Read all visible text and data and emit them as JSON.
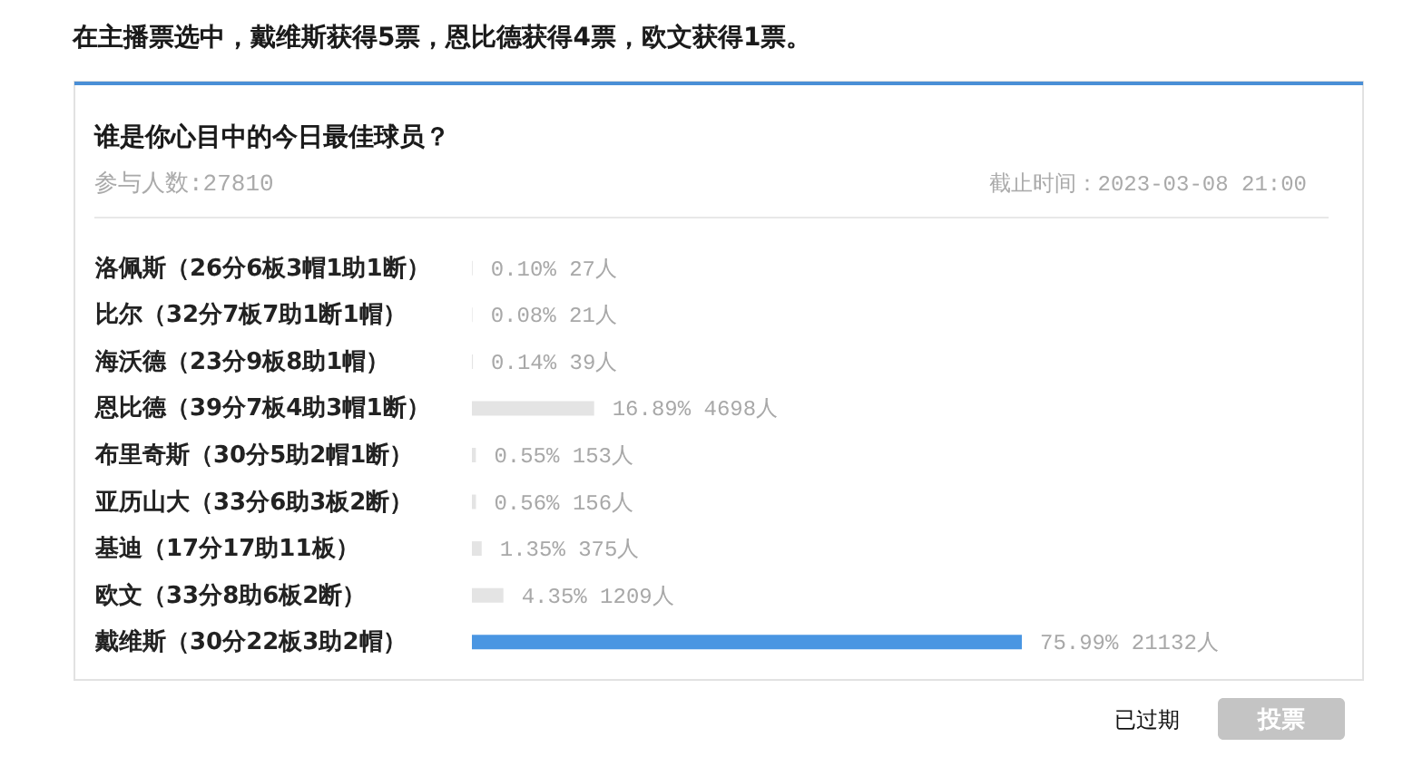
{
  "chart_data": {
    "type": "bar",
    "orientation": "horizontal",
    "title": "在主播票选中，戴维斯获得5票，恩比德获得4票，欧文获得1票。",
    "subtitle": "谁是你心目中的今日最佳球员？",
    "categories": [
      "洛佩斯（26分6板3帽1助1断）",
      "比尔（32分7板7助1断1帽）",
      "海沃德（23分9板8助1帽）",
      "恩比德（39分7板4助3帽1断）",
      "布里奇斯（30分5助2帽1断）",
      "亚历山大（33分6助3板2断）",
      "基迪（17分17助11板）",
      "欧文（33分8助6板2断）",
      "戴维斯（30分22板3助2帽）"
    ],
    "values": [
      0.1,
      0.08,
      0.14,
      16.89,
      0.55,
      0.56,
      1.35,
      4.35,
      75.99
    ],
    "colors": [
      "#e4e4e4",
      "#e4e4e4",
      "#e4e4e4",
      "#e4e4e4",
      "#e4e4e4",
      "#e4e4e4",
      "#e4e4e4",
      "#e4e4e4",
      "#4a96e2"
    ],
    "value_labels": [
      "0.10% 27人",
      "0.08% 21人",
      "0.14% 39人",
      "16.89% 4698人",
      "0.55% 153人",
      "0.56% 156人",
      "1.35% 375人",
      "4.35% 1209人",
      "75.99% 21132人"
    ],
    "tick_labels": "y",
    "annotations": [
      "参与人数:27810",
      "截止时间：2023-03-08 21:00",
      "已过期",
      "投票"
    ]
  }
}
